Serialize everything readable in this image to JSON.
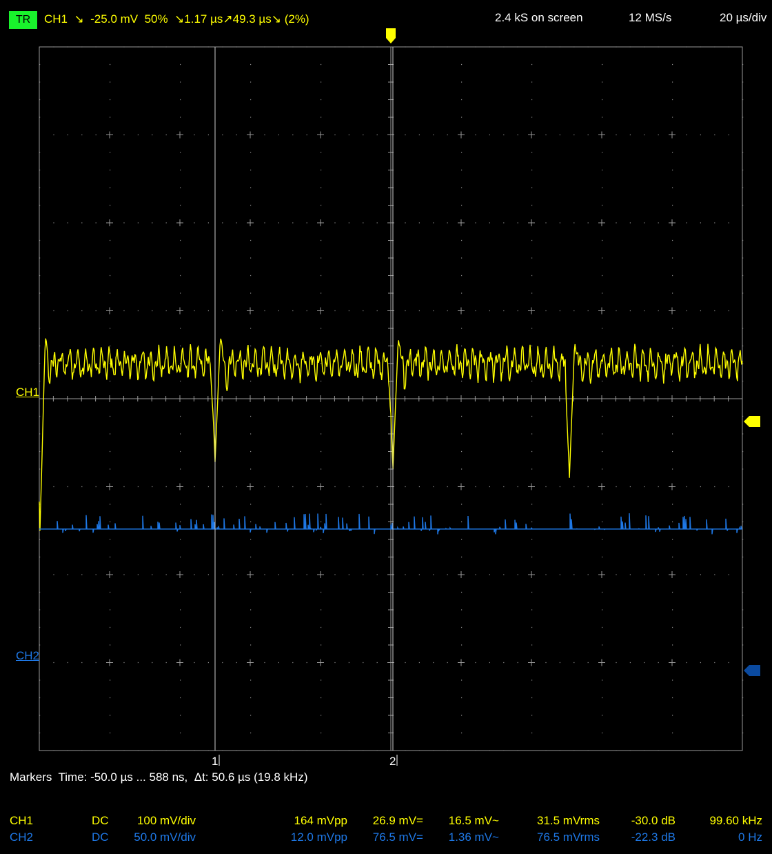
{
  "header": {
    "trigger_badge": "TR",
    "trigger_info": "CH1  ↘  -25.0 mV  50%  ↘1.17 µs↗49.3 µs↘ (2%)",
    "samples_on_screen": "2.4 kS on screen",
    "sample_rate": "12 MS/s",
    "timebase": "20 µs/div"
  },
  "channels": {
    "ch1_label": "CH1",
    "ch2_label": "CH2"
  },
  "markers": {
    "marker1_label": "1",
    "marker2_label": "2",
    "readout": "Markers  Time: -50.0 µs ... 588 ns,  Δt: 50.6 µs (19.8 kHz)"
  },
  "measurements": [
    {
      "channel": "CH1",
      "coupling": "DC",
      "vdiv": "100 mV/div",
      "vpp": "164 mVpp",
      "vdc": "26.9 mV=",
      "vac": "16.5 mV~",
      "vrms": "31.5 mVrms",
      "db": "-30.0 dB",
      "freq": "99.60 kHz"
    },
    {
      "channel": "CH2",
      "coupling": "DC",
      "vdiv": "50.0 mV/div",
      "vpp": "12.0 mVpp",
      "vdc": "76.5 mV=",
      "vac": "1.36 mV~",
      "vrms": "76.5 mVrms",
      "db": "-22.3 dB",
      "freq": "0 Hz"
    }
  ],
  "colors": {
    "ch1": "#ffff00",
    "ch2": "#1e78e6",
    "ch2_marker": "#0a4aa0",
    "grid": "#9a9a9a",
    "trigger_badge": "#19f32c"
  },
  "chart_data": {
    "type": "line",
    "x_unit": "µs",
    "xlim": [
      -100,
      100
    ],
    "grid": true,
    "divisions": {
      "x": 10,
      "y": 8
    },
    "markers_time_us": [
      -50.0,
      0.588
    ],
    "series": [
      {
        "name": "CH1",
        "y_unit": "mV",
        "volts_per_div": 100,
        "baseline_ripple_mv": [
          20,
          60
        ],
        "spikes": [
          {
            "t_us": -99.8,
            "peak_mv": -150,
            "overshoot_mv": 70
          },
          {
            "t_us": -50.0,
            "peak_mv": -72,
            "overshoot_mv": 70
          },
          {
            "t_us": 0.6,
            "peak_mv": -80,
            "overshoot_mv": 68
          },
          {
            "t_us": 50.8,
            "peak_mv": -90,
            "overshoot_mv": 65
          }
        ],
        "color": "#ffff00"
      },
      {
        "name": "CH2",
        "y_unit": "mV",
        "volts_per_div": 50.0,
        "level_mv": 76.5,
        "noise_pp_mv": 12.0,
        "color": "#1e78e6"
      }
    ]
  }
}
